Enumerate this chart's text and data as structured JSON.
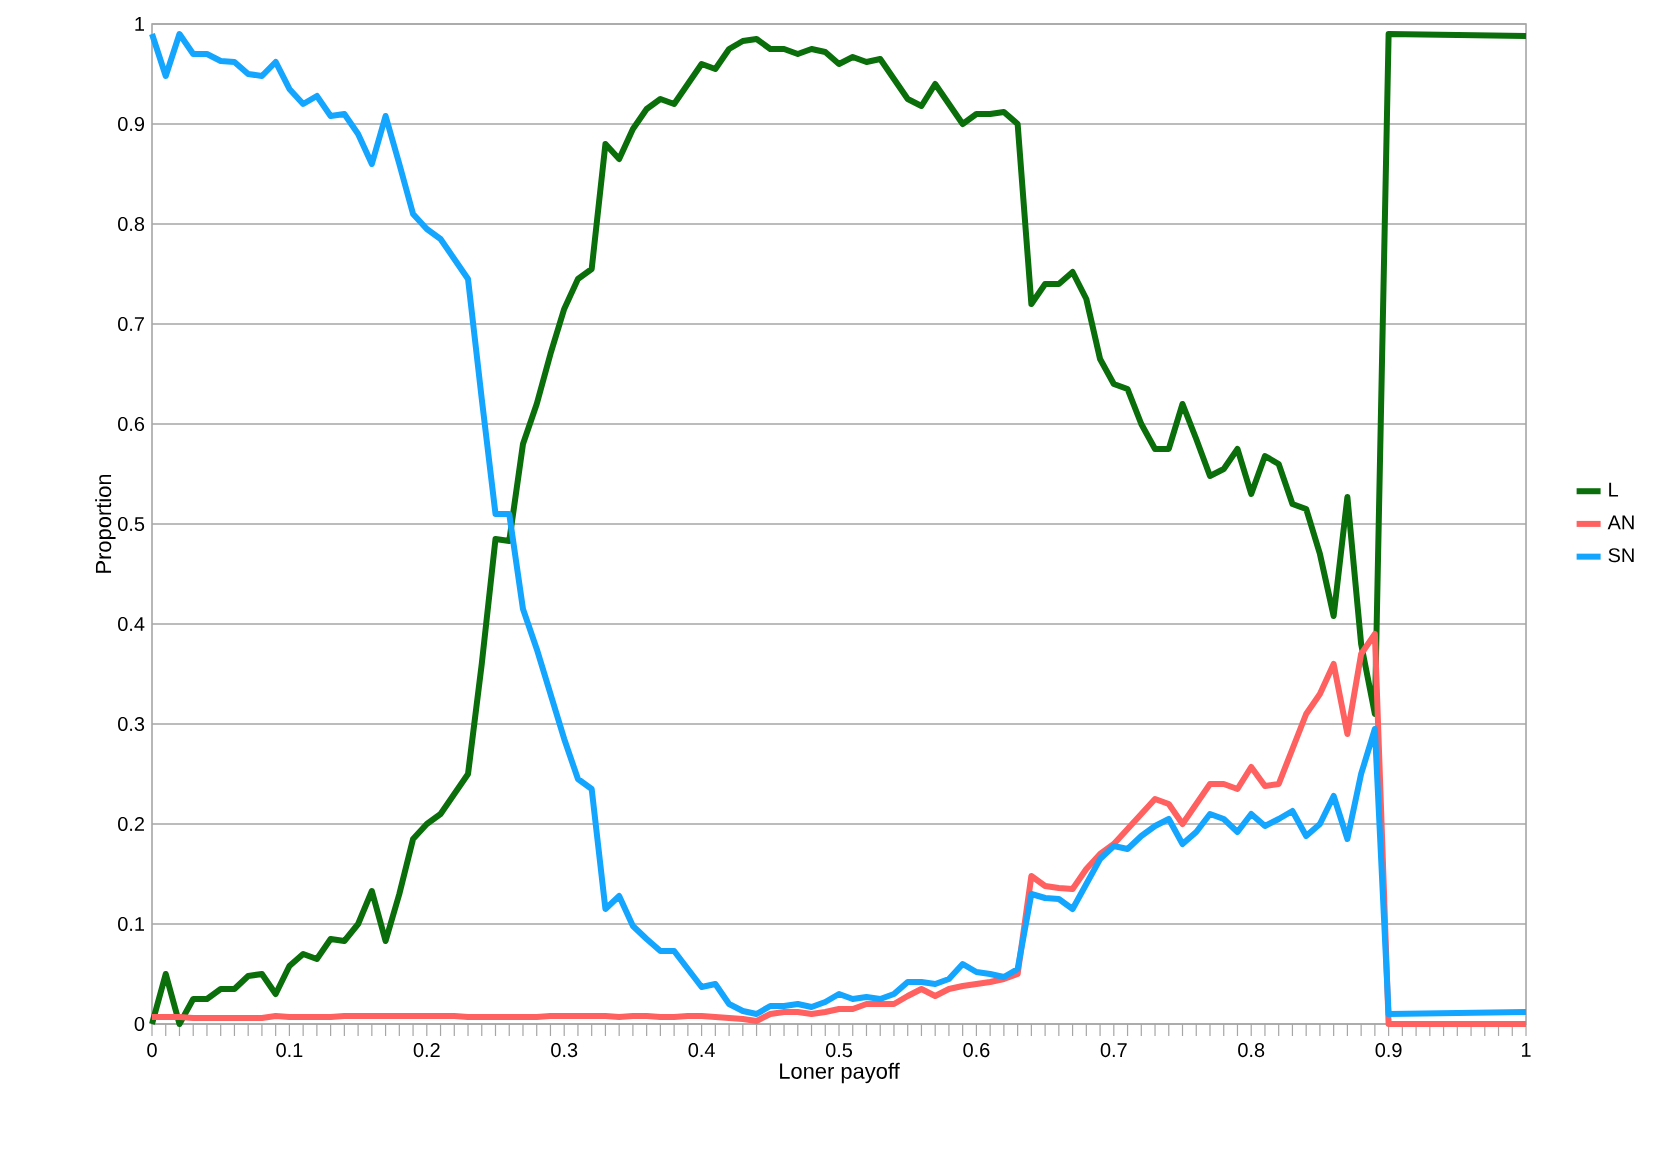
{
  "chart_data": {
    "type": "line",
    "xlabel": "Loner payoff",
    "ylabel": "Proportion",
    "x": [
      0,
      0.01,
      0.02,
      0.03,
      0.04,
      0.05,
      0.06,
      0.07,
      0.08,
      0.09,
      0.1,
      0.11,
      0.12,
      0.13,
      0.14,
      0.15,
      0.16,
      0.17,
      0.18,
      0.19,
      0.2,
      0.21,
      0.22,
      0.23,
      0.24,
      0.25,
      0.26,
      0.27,
      0.28,
      0.29,
      0.3,
      0.31,
      0.32,
      0.33,
      0.34,
      0.35,
      0.36,
      0.37,
      0.38,
      0.39,
      0.4,
      0.41,
      0.42,
      0.43,
      0.44,
      0.45,
      0.46,
      0.47,
      0.48,
      0.49,
      0.5,
      0.51,
      0.52,
      0.53,
      0.54,
      0.55,
      0.56,
      0.57,
      0.58,
      0.59,
      0.6,
      0.61,
      0.62,
      0.63,
      0.64,
      0.65,
      0.66,
      0.67,
      0.68,
      0.69,
      0.7,
      0.71,
      0.72,
      0.73,
      0.74,
      0.75,
      0.76,
      0.77,
      0.78,
      0.79,
      0.8,
      0.81,
      0.82,
      0.83,
      0.84,
      0.85,
      0.86,
      0.87,
      0.88,
      0.89,
      0.9,
      1
    ],
    "series": [
      {
        "name": "L",
        "color": "#0a6e0a",
        "values": [
          0,
          0.05,
          0,
          0.025,
          0.025,
          0.035,
          0.035,
          0.048,
          0.05,
          0.03,
          0.058,
          0.07,
          0.065,
          0.085,
          0.083,
          0.1,
          0.133,
          0.083,
          0.13,
          0.185,
          0.2,
          0.21,
          0.23,
          0.25,
          0.36,
          0.485,
          0.483,
          0.58,
          0.62,
          0.67,
          0.715,
          0.745,
          0.755,
          0.88,
          0.865,
          0.895,
          0.915,
          0.925,
          0.92,
          0.94,
          0.96,
          0.955,
          0.975,
          0.983,
          0.985,
          0.975,
          0.975,
          0.97,
          0.975,
          0.972,
          0.96,
          0.967,
          0.962,
          0.965,
          0.945,
          0.925,
          0.918,
          0.94,
          0.92,
          0.9,
          0.91,
          0.91,
          0.912,
          0.9,
          0.72,
          0.74,
          0.74,
          0.752,
          0.725,
          0.665,
          0.64,
          0.635,
          0.6,
          0.575,
          0.575,
          0.62,
          0.585,
          0.548,
          0.555,
          0.575,
          0.53,
          0.568,
          0.56,
          0.52,
          0.515,
          0.47,
          0.408,
          0.527,
          0.38,
          0.31,
          0.99,
          0.988
        ]
      },
      {
        "name": "AN",
        "color": "#ff6060",
        "values": [
          0.007,
          0.007,
          0.007,
          0.006,
          0.006,
          0.006,
          0.006,
          0.006,
          0.006,
          0.008,
          0.007,
          0.007,
          0.007,
          0.007,
          0.008,
          0.008,
          0.008,
          0.008,
          0.008,
          0.008,
          0.008,
          0.008,
          0.008,
          0.007,
          0.007,
          0.007,
          0.007,
          0.007,
          0.007,
          0.008,
          0.008,
          0.008,
          0.008,
          0.008,
          0.007,
          0.008,
          0.008,
          0.007,
          0.007,
          0.008,
          0.008,
          0.007,
          0.006,
          0.005,
          0.003,
          0.01,
          0.012,
          0.012,
          0.01,
          0.012,
          0.015,
          0.015,
          0.02,
          0.02,
          0.02,
          0.028,
          0.035,
          0.028,
          0.035,
          0.038,
          0.04,
          0.042,
          0.045,
          0.05,
          0.148,
          0.138,
          0.136,
          0.135,
          0.155,
          0.17,
          0.18,
          0.195,
          0.21,
          0.225,
          0.22,
          0.2,
          0.22,
          0.24,
          0.24,
          0.235,
          0.257,
          0.238,
          0.24,
          0.275,
          0.31,
          0.33,
          0.36,
          0.29,
          0.37,
          0.39,
          0,
          0
        ]
      },
      {
        "name": "SN",
        "color": "#14a5ff",
        "values": [
          0.99,
          0.948,
          0.99,
          0.97,
          0.97,
          0.963,
          0.962,
          0.95,
          0.948,
          0.962,
          0.935,
          0.92,
          0.928,
          0.908,
          0.91,
          0.89,
          0.86,
          0.908,
          0.86,
          0.81,
          0.795,
          0.785,
          0.765,
          0.745,
          0.625,
          0.51,
          0.51,
          0.415,
          0.375,
          0.33,
          0.285,
          0.245,
          0.235,
          0.115,
          0.128,
          0.098,
          0.085,
          0.073,
          0.073,
          0.055,
          0.037,
          0.04,
          0.02,
          0.013,
          0.01,
          0.018,
          0.018,
          0.02,
          0.017,
          0.022,
          0.03,
          0.025,
          0.027,
          0.025,
          0.03,
          0.042,
          0.042,
          0.04,
          0.045,
          0.06,
          0.052,
          0.05,
          0.047,
          0.055,
          0.13,
          0.126,
          0.125,
          0.115,
          0.14,
          0.165,
          0.178,
          0.175,
          0.188,
          0.198,
          0.205,
          0.18,
          0.192,
          0.21,
          0.205,
          0.192,
          0.21,
          0.198,
          0.205,
          0.213,
          0.188,
          0.2,
          0.228,
          0.185,
          0.25,
          0.295,
          0.01,
          0.012
        ]
      }
    ],
    "xlim": [
      0,
      1
    ],
    "xticks": [
      0,
      0.1,
      0.2,
      0.3,
      0.4,
      0.5,
      0.6,
      0.7,
      0.8,
      0.9,
      1
    ],
    "ylim": [
      0,
      1
    ],
    "yticks": [
      0,
      0.1,
      0.2,
      0.3,
      0.4,
      0.5,
      0.6,
      0.7,
      0.8,
      0.9,
      1
    ],
    "grid": "y",
    "legend": "right",
    "marker": "none",
    "line_style": "solid"
  }
}
